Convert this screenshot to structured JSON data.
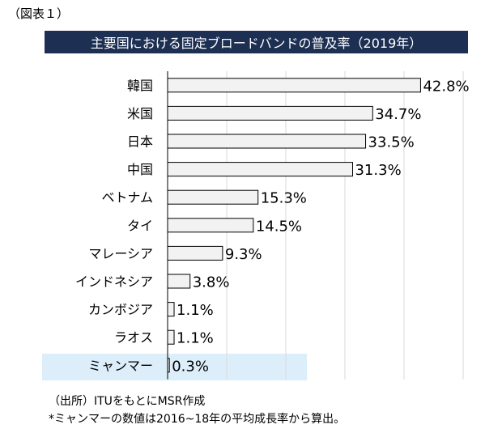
{
  "figure_label": "（図表１）",
  "chart_data": {
    "type": "bar",
    "orientation": "horizontal",
    "title": "主要国における固定ブロードバンドの普及率（2019年）",
    "categories": [
      "韓国",
      "米国",
      "日本",
      "中国",
      "ベトナム",
      "タイ",
      "マレーシア",
      "インドネシア",
      "カンボジア",
      "ラオス",
      "ミャンマー"
    ],
    "values": [
      42.8,
      34.7,
      33.5,
      31.3,
      15.3,
      14.5,
      9.3,
      3.8,
      1.1,
      1.1,
      0.3
    ],
    "value_labels": [
      "42.8%",
      "34.7%",
      "33.5%",
      "31.3%",
      "15.3%",
      "14.5%",
      "9.3%",
      "3.8%",
      "1.1%",
      "1.1%",
      "0.3%"
    ],
    "xlim": [
      0,
      50
    ],
    "grid": true,
    "highlighted_category": "ミャンマー",
    "bar_fill": "#f2f2f2",
    "bar_stroke": "#000000",
    "highlight_color": "#dceefa",
    "title_background": "#1d2f53"
  },
  "footer": {
    "source": "（出所）ITUをもとにMSR作成",
    "note": "*ミャンマーの数値は2016~18年の平均成長率から算出。"
  }
}
